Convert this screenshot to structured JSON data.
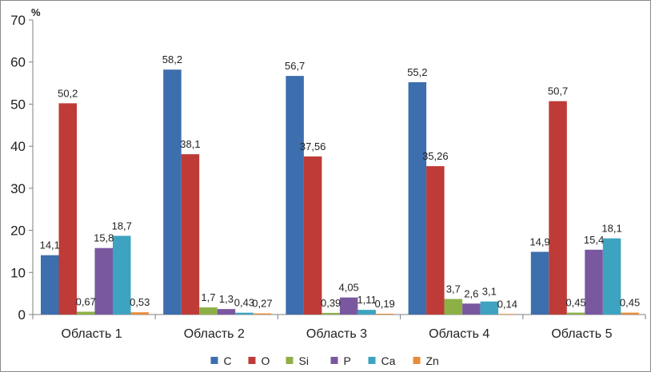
{
  "chart_data": {
    "type": "bar",
    "unit_label": "%",
    "categories": [
      "Область 1",
      "Область 2",
      "Область 3",
      "Область 4",
      "Область 5"
    ],
    "series": [
      {
        "name": "C",
        "color": "#3D6EAD",
        "values": [
          14.1,
          58.2,
          56.7,
          55.2,
          14.9
        ],
        "labels": [
          "14,1",
          "58,2",
          "56,7",
          "55,2",
          "14,9"
        ]
      },
      {
        "name": "O",
        "color": "#BE3B38",
        "values": [
          50.2,
          38.1,
          37.56,
          35.26,
          50.7
        ],
        "labels": [
          "50,2",
          "38,1",
          "37,56",
          "35,26",
          "50,7"
        ]
      },
      {
        "name": "Si",
        "color": "#8DB046",
        "values": [
          0.67,
          1.7,
          0.39,
          3.7,
          0.45
        ],
        "labels": [
          "0,67",
          "1,7",
          "0,39",
          "3,7",
          "0,45"
        ]
      },
      {
        "name": "P",
        "color": "#7A58A0",
        "values": [
          15.8,
          1.3,
          4.05,
          2.6,
          15.4
        ],
        "labels": [
          "15,8",
          "1,3",
          "4,05",
          "2,6",
          "15,4"
        ]
      },
      {
        "name": "Ca",
        "color": "#3DA3C0",
        "values": [
          18.7,
          0.43,
          1.11,
          3.1,
          18.1
        ],
        "labels": [
          "18,7",
          "0,43",
          "1,11",
          "3,1",
          "18,1"
        ]
      },
      {
        "name": "Zn",
        "color": "#E88C3A",
        "values": [
          0.53,
          0.27,
          0.19,
          0.14,
          0.45
        ],
        "labels": [
          "0,53",
          "0,27",
          "0,19",
          "0,14",
          "0,45"
        ]
      }
    ],
    "y_ticks": [
      0,
      10,
      20,
      30,
      40,
      50,
      60,
      70
    ],
    "ylim": [
      0,
      70
    ],
    "grid": false,
    "legend_position": "bottom"
  }
}
